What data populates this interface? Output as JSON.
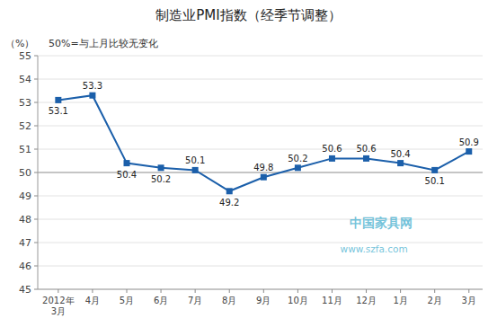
{
  "chart_data": {
    "type": "line",
    "title": "制造业PMI指数（经季节调整）",
    "subtitle": "50%=与上月比较无变化",
    "ylabel": "（%）",
    "categories": [
      "2012年\n3月",
      "4月",
      "5月",
      "6月",
      "7月",
      "8月",
      "9月",
      "10月",
      "11月",
      "12月",
      "1月",
      "2月",
      "3月"
    ],
    "values": [
      53.1,
      53.3,
      50.4,
      50.2,
      50.1,
      49.2,
      49.8,
      50.2,
      50.6,
      50.6,
      50.4,
      50.1,
      50.9
    ],
    "color": "#1B5FAA",
    "marker": "square",
    "ylim": [
      45,
      55
    ],
    "yticks": [
      45,
      46,
      47,
      48,
      49,
      50,
      51,
      52,
      53,
      54,
      55
    ],
    "reference_line": 50,
    "grid": true,
    "data_labels": true,
    "annotations": [
      "中国家具网",
      "www.szfa.com"
    ]
  }
}
